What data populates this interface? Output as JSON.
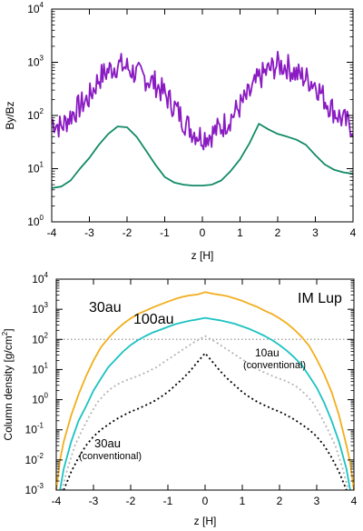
{
  "chart_data": [
    {
      "type": "line",
      "xlabel": "z [H]",
      "ylabel": "By/Bz",
      "xlim": [
        -4,
        4
      ],
      "ylim": [
        1,
        10000
      ],
      "yscale": "log",
      "x_ticks": [
        "-4",
        "-3",
        "-2",
        "-1",
        "0",
        "1",
        "2",
        "3",
        "4"
      ],
      "y_ticks": [
        {
          "base": "10",
          "exp": "0"
        },
        {
          "base": "10",
          "exp": "1"
        },
        {
          "base": "10",
          "exp": "2"
        },
        {
          "base": "10",
          "exp": "3"
        },
        {
          "base": "10",
          "exp": "4"
        }
      ],
      "grid": false,
      "series": [
        {
          "color": "#8a1bc2",
          "style": "solid",
          "x": [
            -4.0,
            -3.75,
            -3.5,
            -3.25,
            -3.0,
            -2.75,
            -2.5,
            -2.25,
            -2.0,
            -1.75,
            -1.5,
            -1.25,
            -1.0,
            -0.75,
            -0.5,
            -0.25,
            0.0,
            0.25,
            0.5,
            0.75,
            1.0,
            1.25,
            1.5,
            1.75,
            2.0,
            2.25,
            2.5,
            2.75,
            3.0,
            3.25,
            3.5,
            3.75,
            4.0
          ],
          "y": [
            80,
            60,
            100,
            150,
            220,
            500,
            700,
            900,
            800,
            600,
            500,
            400,
            250,
            150,
            80,
            50,
            40,
            45,
            60,
            90,
            150,
            250,
            500,
            700,
            900,
            850,
            600,
            500,
            400,
            200,
            120,
            80,
            60
          ],
          "noise": 0.5
        },
        {
          "color": "#118a66",
          "style": "solid",
          "x": [
            -4.0,
            -3.75,
            -3.5,
            -3.25,
            -3.0,
            -2.75,
            -2.5,
            -2.25,
            -2.0,
            -1.75,
            -1.5,
            -1.25,
            -1.0,
            -0.75,
            -0.5,
            -0.25,
            0.0,
            0.25,
            0.5,
            0.75,
            1.0,
            1.25,
            1.5,
            1.75,
            2.0,
            2.25,
            2.5,
            2.75,
            3.0,
            3.25,
            3.5,
            3.75,
            4.0
          ],
          "y": [
            4.3,
            4.6,
            6,
            10,
            16,
            28,
            45,
            62,
            60,
            40,
            22,
            12,
            7,
            5.5,
            5,
            4.8,
            4.8,
            5,
            6,
            9,
            15,
            30,
            70,
            55,
            45,
            40,
            35,
            28,
            18,
            12,
            9.5,
            8.5,
            8
          ]
        }
      ]
    },
    {
      "type": "line",
      "xlabel": "z [H]",
      "ylabel": "Column density [g/cm",
      "ylabel_sup": "2",
      "ylabel_end": "]",
      "xlim": [
        -4,
        4
      ],
      "ylim": [
        0.001,
        10000
      ],
      "yscale": "log",
      "x_ticks": [
        "-4",
        "-3",
        "-2",
        "-1",
        "0",
        "1",
        "2",
        "3",
        "4"
      ],
      "y_ticks": [
        {
          "base": "10",
          "exp": "-3"
        },
        {
          "base": "10",
          "exp": "-2"
        },
        {
          "base": "10",
          "exp": "-1"
        },
        {
          "base": "10",
          "exp": "0"
        },
        {
          "base": "10",
          "exp": "1"
        },
        {
          "base": "10",
          "exp": "2"
        },
        {
          "base": "10",
          "exp": "3"
        },
        {
          "base": "10",
          "exp": "4"
        }
      ],
      "grid": false,
      "annotation": "IM Lup",
      "hline": {
        "y": 100,
        "color": "#999999",
        "style": "dotted"
      },
      "series": [
        {
          "name": "30au",
          "color": "#f2ae1c",
          "style": "solid",
          "x": [
            -4.0,
            -3.9,
            -3.8,
            -3.6,
            -3.4,
            -3.2,
            -3.0,
            -2.8,
            -2.6,
            -2.4,
            -2.2,
            -2.0,
            -1.8,
            -1.6,
            -1.4,
            -1.2,
            -1.0,
            -0.8,
            -0.6,
            -0.4,
            -0.2,
            0.0,
            0.2,
            0.4,
            0.6,
            0.8,
            1.0,
            1.2,
            1.4,
            1.6,
            1.8,
            2.0,
            2.2,
            2.4,
            2.6,
            2.8,
            3.0,
            3.2,
            3.4,
            3.6,
            3.8,
            3.9,
            4.0
          ],
          "y": [
            0.001,
            0.01,
            0.04,
            0.3,
            1.5,
            6,
            20,
            55,
            110,
            200,
            330,
            500,
            700,
            900,
            1150,
            1450,
            1800,
            2200,
            2600,
            2900,
            3100,
            3700,
            3300,
            3000,
            2700,
            2300,
            1900,
            1500,
            1200,
            900,
            700,
            500,
            340,
            210,
            120,
            60,
            22,
            7,
            1.8,
            0.3,
            0.03,
            0.008,
            0.001
          ]
        },
        {
          "name": "100au",
          "color": "#1cc2c2",
          "style": "solid",
          "x": [
            -3.9,
            -3.8,
            -3.6,
            -3.4,
            -3.2,
            -3.0,
            -2.8,
            -2.6,
            -2.4,
            -2.2,
            -2.0,
            -1.8,
            -1.6,
            -1.4,
            -1.2,
            -1.0,
            -0.8,
            -0.6,
            -0.4,
            -0.2,
            0.0,
            0.2,
            0.4,
            0.6,
            0.8,
            1.0,
            1.2,
            1.4,
            1.6,
            1.8,
            2.0,
            2.2,
            2.4,
            2.6,
            2.8,
            3.0,
            3.2,
            3.4,
            3.6,
            3.8,
            3.9
          ],
          "y": [
            0.001,
            0.005,
            0.04,
            0.2,
            0.6,
            2,
            5,
            12,
            22,
            40,
            65,
            95,
            130,
            170,
            210,
            260,
            320,
            370,
            420,
            460,
            520,
            470,
            430,
            380,
            330,
            270,
            220,
            170,
            130,
            95,
            65,
            42,
            25,
            14,
            6,
            2.5,
            0.8,
            0.2,
            0.04,
            0.005,
            0.001
          ]
        },
        {
          "name": "10au",
          "sublabel": "(conventional)",
          "color": "#b5b5b5",
          "style": "dotted",
          "x": [
            -3.85,
            -3.7,
            -3.5,
            -3.3,
            -3.1,
            -2.9,
            -2.7,
            -2.5,
            -2.3,
            -2.1,
            -1.9,
            -1.7,
            -1.5,
            -1.3,
            -1.1,
            -0.9,
            -0.7,
            -0.5,
            -0.3,
            -0.1,
            0.0,
            0.1,
            0.3,
            0.5,
            0.7,
            0.9,
            1.1,
            1.3,
            1.5,
            1.7,
            1.9,
            2.1,
            2.3,
            2.5,
            2.7,
            2.9,
            3.1,
            3.3,
            3.5,
            3.7,
            3.85
          ],
          "y": [
            0.001,
            0.005,
            0.03,
            0.1,
            0.3,
            0.8,
            1.5,
            2.5,
            3.5,
            4.5,
            5.5,
            7,
            9,
            12,
            18,
            26,
            38,
            55,
            80,
            110,
            130,
            110,
            80,
            55,
            38,
            26,
            18,
            12,
            9,
            7,
            5.5,
            4.5,
            3.5,
            2.5,
            1.5,
            0.8,
            0.3,
            0.1,
            0.03,
            0.005,
            0.001
          ]
        },
        {
          "name": "30au",
          "sublabel": "(conventional)",
          "color": "#000000",
          "style": "dotted",
          "x": [
            -3.8,
            -3.6,
            -3.4,
            -3.2,
            -3.0,
            -2.8,
            -2.6,
            -2.4,
            -2.2,
            -2.0,
            -1.8,
            -1.6,
            -1.4,
            -1.2,
            -1.0,
            -0.8,
            -0.6,
            -0.4,
            -0.2,
            0.0,
            0.2,
            0.4,
            0.6,
            0.8,
            1.0,
            1.2,
            1.4,
            1.6,
            1.8,
            2.0,
            2.2,
            2.4,
            2.6,
            2.8,
            3.0,
            3.2,
            3.4,
            3.6,
            3.8
          ],
          "y": [
            0.001,
            0.004,
            0.012,
            0.03,
            0.06,
            0.1,
            0.15,
            0.22,
            0.3,
            0.4,
            0.5,
            0.65,
            0.85,
            1.2,
            1.8,
            3,
            5,
            9,
            18,
            35,
            18,
            9,
            5,
            3,
            1.8,
            1.2,
            0.85,
            0.65,
            0.5,
            0.4,
            0.3,
            0.22,
            0.15,
            0.1,
            0.06,
            0.03,
            0.012,
            0.004,
            0.001
          ]
        }
      ]
    }
  ]
}
